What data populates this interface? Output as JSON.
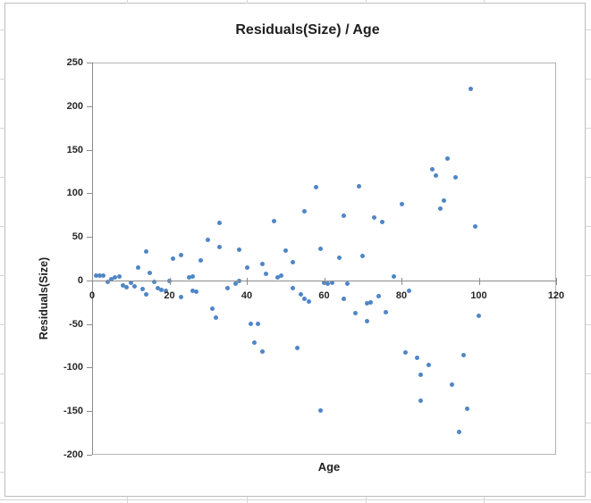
{
  "chart_data": {
    "type": "scatter",
    "title": "Residuals(Size) / Age",
    "xlabel": "Age",
    "ylabel": "Residuals(Size)",
    "xlim": [
      0,
      120
    ],
    "ylim": [
      -200,
      250
    ],
    "xtick_step": 20,
    "ytick_step": 50,
    "grid": false,
    "legend": false,
    "marker_color": "#4f86c6",
    "axis_color": "#8c8c8c",
    "plot_border_color": "#b3b3b3",
    "text_color": "#262626",
    "series_name": "Residuals(Size)",
    "points": [
      [
        1,
        6
      ],
      [
        2,
        6
      ],
      [
        3,
        6
      ],
      [
        4,
        -2
      ],
      [
        5,
        1
      ],
      [
        6,
        3
      ],
      [
        7,
        5
      ],
      [
        8,
        -6
      ],
      [
        9,
        -8
      ],
      [
        10,
        -3
      ],
      [
        11,
        -7
      ],
      [
        12,
        15
      ],
      [
        13,
        -10
      ],
      [
        14,
        33
      ],
      [
        14,
        -16
      ],
      [
        15,
        9
      ],
      [
        16,
        -2
      ],
      [
        17,
        -9
      ],
      [
        18,
        -11
      ],
      [
        19,
        -12
      ],
      [
        20,
        -1
      ],
      [
        21,
        25
      ],
      [
        23,
        29
      ],
      [
        23,
        -19
      ],
      [
        25,
        3
      ],
      [
        26,
        5
      ],
      [
        26,
        -12
      ],
      [
        27,
        -13
      ],
      [
        28,
        23
      ],
      [
        30,
        47
      ],
      [
        31,
        -32
      ],
      [
        32,
        -43
      ],
      [
        33,
        66
      ],
      [
        33,
        38
      ],
      [
        35,
        -9
      ],
      [
        37,
        -4
      ],
      [
        38,
        -1
      ],
      [
        38,
        35
      ],
      [
        40,
        15
      ],
      [
        41,
        -50
      ],
      [
        42,
        -71
      ],
      [
        43,
        -50
      ],
      [
        44,
        -82
      ],
      [
        44,
        19
      ],
      [
        45,
        8
      ],
      [
        47,
        68
      ],
      [
        48,
        3
      ],
      [
        49,
        6
      ],
      [
        50,
        34
      ],
      [
        52,
        21
      ],
      [
        52,
        -9
      ],
      [
        53,
        -78
      ],
      [
        54,
        -16
      ],
      [
        55,
        -21
      ],
      [
        56,
        -24
      ],
      [
        55,
        79
      ],
      [
        58,
        107
      ],
      [
        59,
        36
      ],
      [
        59,
        -149
      ],
      [
        60,
        -3
      ],
      [
        61,
        -4
      ],
      [
        62,
        -3
      ],
      [
        64,
        26
      ],
      [
        65,
        74
      ],
      [
        65,
        -21
      ],
      [
        66,
        -4
      ],
      [
        68,
        -38
      ],
      [
        69,
        108
      ],
      [
        70,
        28
      ],
      [
        71,
        -26
      ],
      [
        71,
        -47
      ],
      [
        72,
        -25
      ],
      [
        73,
        72
      ],
      [
        74,
        -18
      ],
      [
        75,
        67
      ],
      [
        76,
        -37
      ],
      [
        78,
        5
      ],
      [
        80,
        88
      ],
      [
        81,
        -83
      ],
      [
        82,
        -12
      ],
      [
        84,
        -89
      ],
      [
        85,
        -108
      ],
      [
        85,
        -138
      ],
      [
        87,
        -97
      ],
      [
        88,
        128
      ],
      [
        89,
        120
      ],
      [
        90,
        82
      ],
      [
        91,
        92
      ],
      [
        92,
        140
      ],
      [
        93,
        -120
      ],
      [
        94,
        118
      ],
      [
        95,
        -174
      ],
      [
        96,
        -86
      ],
      [
        97,
        -147
      ],
      [
        98,
        220
      ],
      [
        99,
        62
      ],
      [
        100,
        -41
      ]
    ]
  }
}
